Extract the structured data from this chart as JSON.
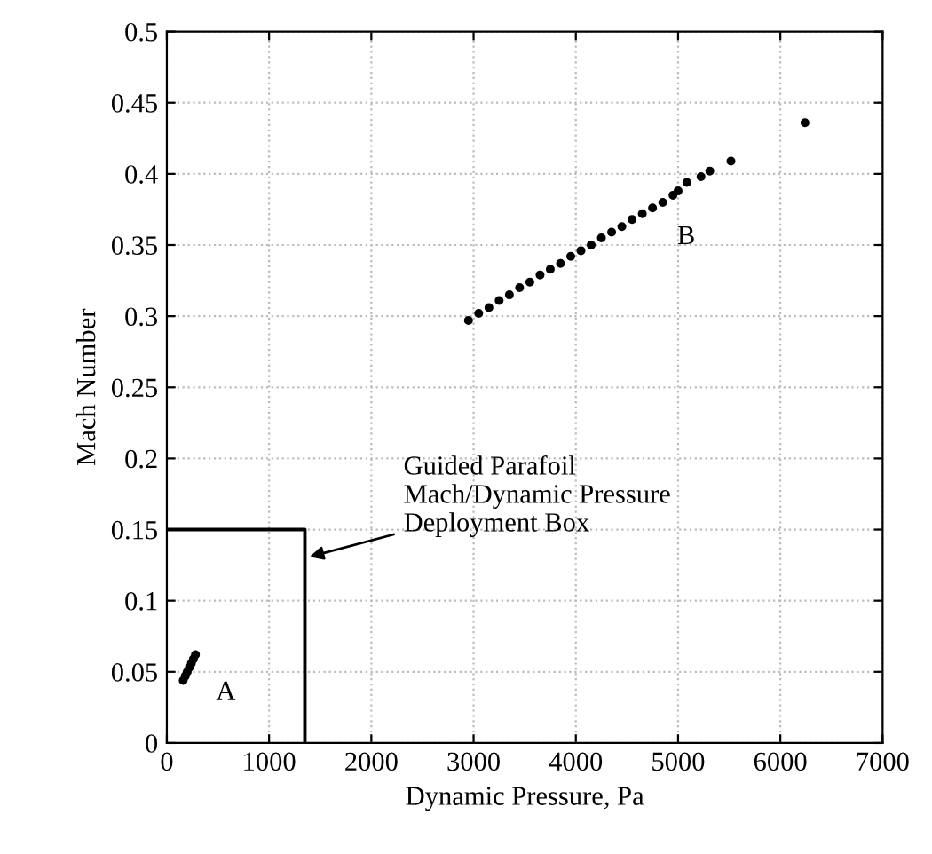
{
  "chart_data": {
    "type": "scatter",
    "xlabel": "Dynamic Pressure, Pa",
    "ylabel": "Mach Number",
    "xlim": [
      0,
      7000
    ],
    "ylim": [
      0,
      0.5
    ],
    "xticks": [
      0,
      1000,
      2000,
      3000,
      4000,
      5000,
      6000,
      7000
    ],
    "yticks": [
      0,
      0.05,
      0.1,
      0.15,
      0.2,
      0.25,
      0.3,
      0.35,
      0.4,
      0.45,
      0.5
    ],
    "grid": true,
    "marker": "circle",
    "series": [
      {
        "name": "A",
        "color": "#000000",
        "x": [
          160,
          180,
          200,
          220,
          240,
          260,
          280
        ],
        "values": [
          0.044,
          0.047,
          0.05,
          0.053,
          0.056,
          0.059,
          0.062
        ]
      },
      {
        "name": "B",
        "color": "#000000",
        "x": [
          2950,
          3050,
          3150,
          3250,
          3350,
          3450,
          3550,
          3650,
          3750,
          3850,
          3950,
          4050,
          4150,
          4250,
          4350,
          4450,
          4550,
          4650,
          4750,
          4850,
          4950,
          5000,
          5086,
          5224,
          5310,
          5517,
          6241
        ],
        "values": [
          0.297,
          0.302,
          0.306,
          0.311,
          0.315,
          0.32,
          0.324,
          0.329,
          0.333,
          0.337,
          0.342,
          0.346,
          0.35,
          0.355,
          0.359,
          0.363,
          0.368,
          0.372,
          0.376,
          0.38,
          0.385,
          0.388,
          0.394,
          0.398,
          0.402,
          0.409,
          0.436
        ]
      },
      {
        "type": "line",
        "color": "#000000",
        "line_style": "solid",
        "marker": "none",
        "x": [
          0,
          1350,
          1350
        ],
        "values": [
          0.15,
          0.15,
          0
        ]
      }
    ],
    "annotations": [
      {
        "text": "Guided Parafoil\nMach/Dynamic Pressure\nDeployment Box",
        "x": 1350,
        "y": 0.13
      }
    ]
  }
}
